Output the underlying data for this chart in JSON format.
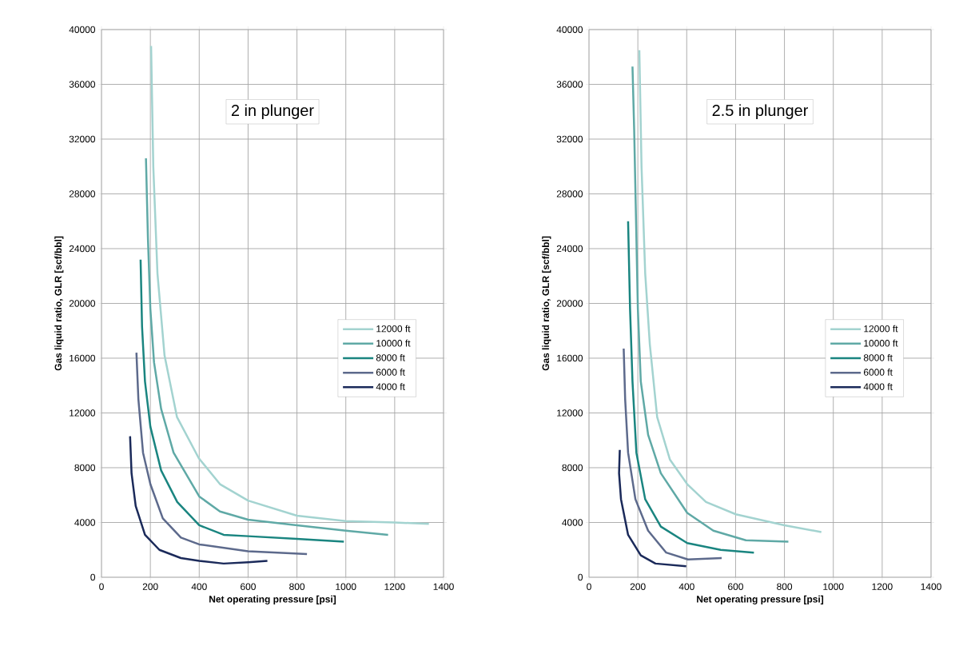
{
  "chart_data": [
    {
      "type": "line",
      "title": "2 in plunger",
      "xlabel": "Net operating pressure [psi]",
      "ylabel": "Gas liquid ratio, GLR [scf/bbl]",
      "xlim": [
        0,
        1400
      ],
      "ylim": [
        0,
        40000
      ],
      "xticks": [
        0,
        200,
        400,
        600,
        800,
        1000,
        1200,
        1400
      ],
      "yticks": [
        0,
        4000,
        8000,
        12000,
        16000,
        20000,
        24000,
        28000,
        32000,
        36000,
        40000
      ],
      "grid": true,
      "legend": "right",
      "marker": "none",
      "line_style": "solid",
      "series": [
        {
          "name": "12000 ft",
          "color": "#a3d3d0",
          "x": [
            203,
            212,
            229,
            258,
            309,
            398,
            485,
            600,
            800,
            1000,
            1200,
            1340
          ],
          "values": [
            38800,
            30000,
            22200,
            16200,
            11700,
            8700,
            6800,
            5600,
            4500,
            4100,
            4000,
            3900
          ]
        },
        {
          "name": "10000 ft",
          "color": "#5fa9a6",
          "x": [
            182,
            190,
            200,
            215,
            244,
            295,
            400,
            485,
            600,
            800,
            1000,
            1173
          ],
          "values": [
            30600,
            24800,
            19600,
            15700,
            12300,
            9100,
            5900,
            4800,
            4200,
            3800,
            3400,
            3100
          ]
        },
        {
          "name": "8000 ft",
          "color": "#1a8580",
          "x": [
            160,
            166,
            178,
            200,
            244,
            310,
            400,
            500,
            600,
            800,
            992
          ],
          "values": [
            23200,
            18300,
            14300,
            11000,
            7800,
            5500,
            3800,
            3100,
            3000,
            2800,
            2600
          ]
        },
        {
          "name": "6000 ft",
          "color": "#5d6a8c",
          "x": [
            143,
            151,
            170,
            200,
            251,
            325,
            400,
            600,
            841
          ],
          "values": [
            16400,
            13000,
            9100,
            6800,
            4300,
            2900,
            2400,
            1900,
            1700
          ]
        },
        {
          "name": "4000 ft",
          "color": "#1b2a5a",
          "x": [
            117,
            123,
            140,
            178,
            237,
            325,
            400,
            500,
            600,
            679
          ],
          "values": [
            10300,
            7600,
            5200,
            3100,
            2000,
            1400,
            1200,
            1000,
            1100,
            1200
          ]
        }
      ]
    },
    {
      "type": "line",
      "title": "2.5 in plunger",
      "xlabel": "Net operating pressure [psi]",
      "ylabel": "Gas liquid ratio, GLR [scf/bbl]",
      "xlim": [
        0,
        1400
      ],
      "ylim": [
        0,
        40000
      ],
      "xticks": [
        0,
        200,
        400,
        600,
        800,
        1000,
        1200,
        1400
      ],
      "yticks": [
        0,
        4000,
        8000,
        12000,
        16000,
        20000,
        24000,
        28000,
        32000,
        36000,
        40000
      ],
      "grid": true,
      "legend": "right",
      "marker": "none",
      "line_style": "solid",
      "series": [
        {
          "name": "12000 ft",
          "color": "#a3d3d0",
          "x": [
            206,
            215,
            230,
            249,
            279,
            331,
            402,
            479,
            601,
            800,
            951
          ],
          "values": [
            38500,
            30000,
            22200,
            17000,
            11700,
            8600,
            6800,
            5500,
            4600,
            3800,
            3300
          ]
        },
        {
          "name": "10000 ft",
          "color": "#5fa9a6",
          "x": [
            178,
            185,
            194,
            200,
            212,
            242,
            294,
            402,
            509,
            642,
            816
          ],
          "values": [
            37300,
            32600,
            24800,
            19600,
            14300,
            10400,
            7600,
            4700,
            3400,
            2700,
            2600
          ]
        },
        {
          "name": "8000 ft",
          "color": "#1a8580",
          "x": [
            160,
            168,
            178,
            194,
            230,
            294,
            402,
            539,
            675
          ],
          "values": [
            26000,
            19600,
            14300,
            9100,
            5700,
            3700,
            2500,
            2000,
            1800
          ]
        },
        {
          "name": "6000 ft",
          "color": "#5d6a8c",
          "x": [
            142,
            148,
            160,
            190,
            242,
            316,
            405,
            543
          ],
          "values": [
            16700,
            13000,
            9100,
            5700,
            3400,
            1800,
            1300,
            1400
          ]
        },
        {
          "name": "4000 ft",
          "color": "#1b2a5a",
          "x": [
            126,
            123,
            131,
            160,
            212,
            272,
            398
          ],
          "values": [
            9300,
            7600,
            5700,
            3100,
            1600,
            1000,
            800
          ]
        }
      ]
    }
  ]
}
